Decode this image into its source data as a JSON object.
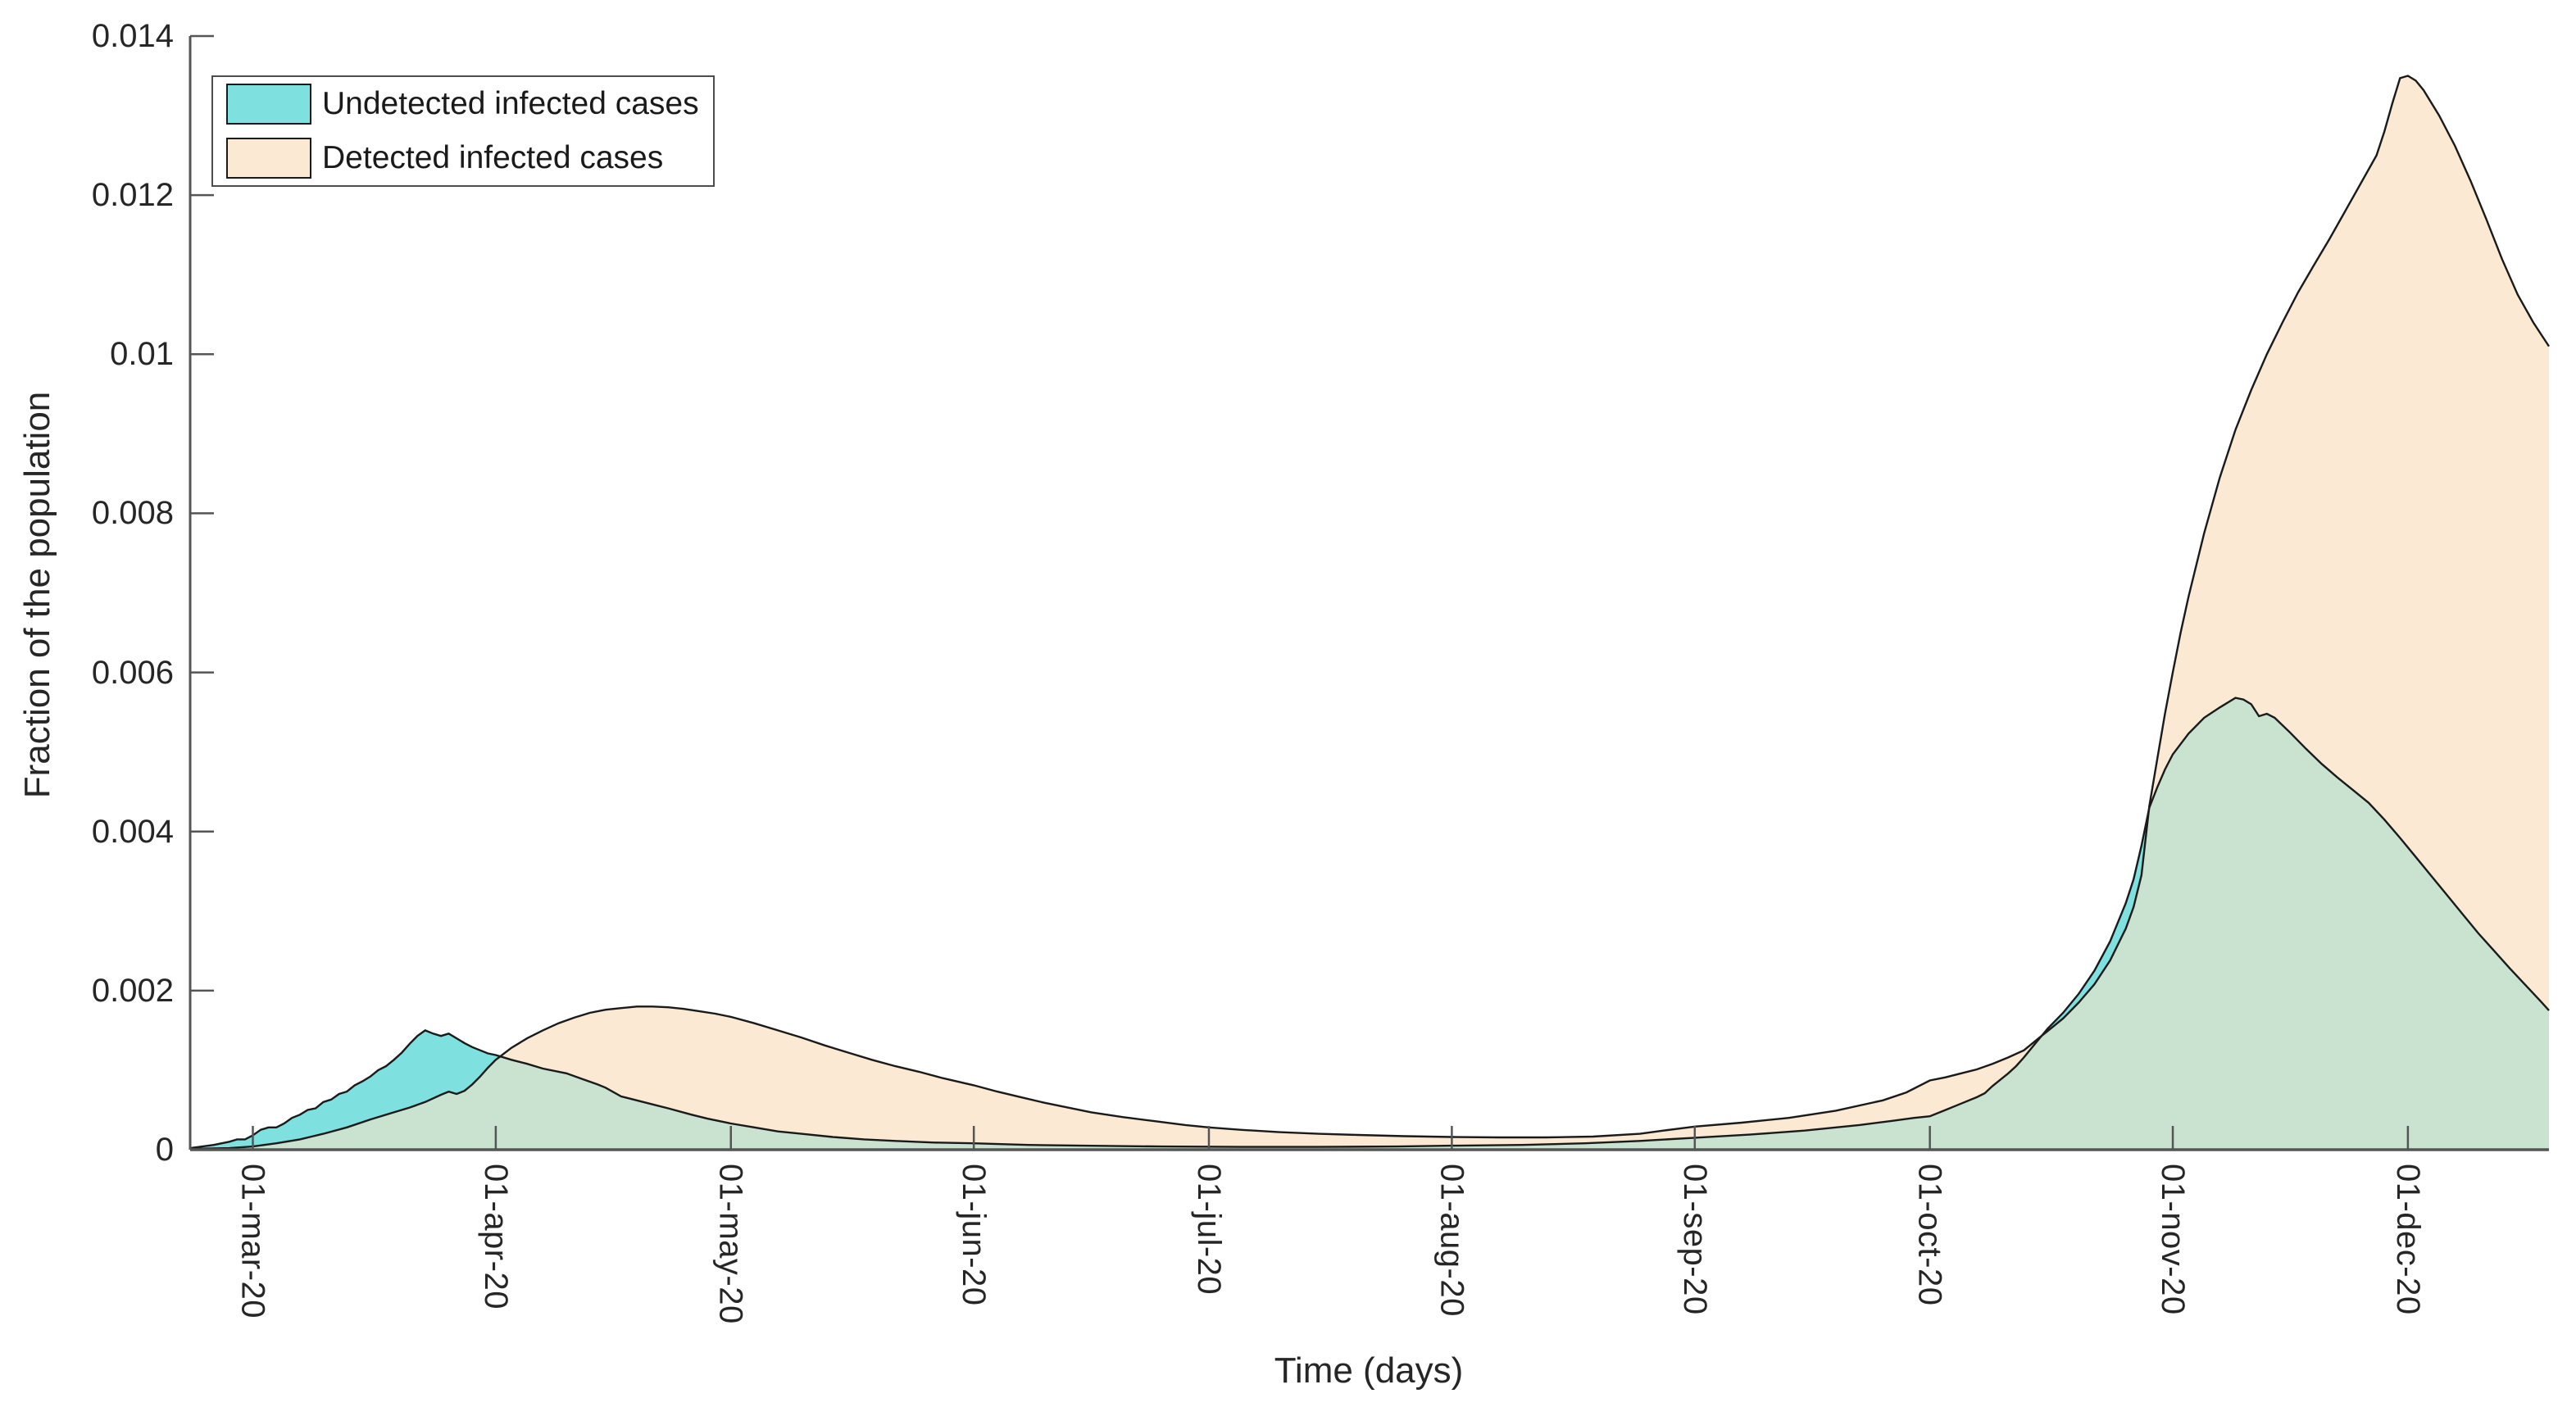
{
  "window": {
    "background": "#ffffff"
  },
  "chart_data": {
    "type": "area",
    "title": "",
    "xlabel": "Time (days)",
    "ylabel": "Fraction of the population",
    "grid": false,
    "box": false,
    "legend_position": "top-left-inside",
    "ylim": [
      0,
      0.014
    ],
    "xlim": [
      "2020-02-22",
      "2020-12-19"
    ],
    "y_ticks": [
      0,
      0.002,
      0.004,
      0.006,
      0.008,
      0.01,
      0.012,
      0.014
    ],
    "y_tick_labels": [
      "0",
      "0.002",
      "0.004",
      "0.006",
      "0.008",
      "0.01",
      "0.012",
      "0.014"
    ],
    "x_tick_dates": [
      "2020-03-01",
      "2020-04-01",
      "2020-05-01",
      "2020-06-01",
      "2020-07-01",
      "2020-08-01",
      "2020-09-01",
      "2020-10-01",
      "2020-11-01",
      "2020-12-01"
    ],
    "x_tick_labels": [
      "01-mar-20",
      "01-apr-20",
      "01-may-20",
      "01-jun-20",
      "01-jul-20",
      "01-aug-20",
      "01-sep-20",
      "01-oct-20",
      "01-nov-20",
      "01-dec-20"
    ],
    "overlap_fill": "#C9E3D0",
    "line_color": "#1A1A1A",
    "axis_color": "#555555",
    "text_color": "#262626",
    "series": [
      {
        "name": "Undetected infected cases",
        "fill": "#7EE1DF",
        "points": [
          [
            "2020-02-22",
            2e-05
          ],
          [
            "2020-02-25",
            6e-05
          ],
          [
            "2020-02-27",
            0.0001
          ],
          [
            "2020-02-28",
            0.00013
          ],
          [
            "2020-02-29",
            0.00013
          ],
          [
            "2020-03-01",
            0.00018
          ],
          [
            "2020-03-02",
            0.00025
          ],
          [
            "2020-03-03",
            0.00028
          ],
          [
            "2020-03-04",
            0.00028
          ],
          [
            "2020-03-05",
            0.00033
          ],
          [
            "2020-03-06",
            0.0004
          ],
          [
            "2020-03-07",
            0.00044
          ],
          [
            "2020-03-08",
            0.0005
          ],
          [
            "2020-03-09",
            0.00052
          ],
          [
            "2020-03-10",
            0.0006
          ],
          [
            "2020-03-11",
            0.00063
          ],
          [
            "2020-03-12",
            0.0007
          ],
          [
            "2020-03-13",
            0.00073
          ],
          [
            "2020-03-14",
            0.00081
          ],
          [
            "2020-03-15",
            0.00086
          ],
          [
            "2020-03-16",
            0.00092
          ],
          [
            "2020-03-17",
            0.001
          ],
          [
            "2020-03-18",
            0.00105
          ],
          [
            "2020-03-19",
            0.00113
          ],
          [
            "2020-03-20",
            0.00122
          ],
          [
            "2020-03-21",
            0.00133
          ],
          [
            "2020-03-22",
            0.00143
          ],
          [
            "2020-03-23",
            0.0015
          ],
          [
            "2020-03-24",
            0.00146
          ],
          [
            "2020-03-25",
            0.00143
          ],
          [
            "2020-03-26",
            0.00146
          ],
          [
            "2020-03-27",
            0.0014
          ],
          [
            "2020-03-28",
            0.00134
          ],
          [
            "2020-03-29",
            0.00129
          ],
          [
            "2020-03-30",
            0.00125
          ],
          [
            "2020-03-31",
            0.00121
          ],
          [
            "2020-04-01",
            0.00119
          ],
          [
            "2020-04-03",
            0.00113
          ],
          [
            "2020-04-05",
            0.00108
          ],
          [
            "2020-04-07",
            0.00102
          ],
          [
            "2020-04-10",
            0.00096
          ],
          [
            "2020-04-12",
            0.00089
          ],
          [
            "2020-04-14",
            0.00082
          ],
          [
            "2020-04-15",
            0.00078
          ],
          [
            "2020-04-17",
            0.00067
          ],
          [
            "2020-04-19",
            0.00062
          ],
          [
            "2020-04-21",
            0.00057
          ],
          [
            "2020-04-23",
            0.00052
          ],
          [
            "2020-04-26",
            0.00044
          ],
          [
            "2020-04-28",
            0.00039
          ],
          [
            "2020-05-01",
            0.00033
          ],
          [
            "2020-05-04",
            0.00028
          ],
          [
            "2020-05-07",
            0.00023
          ],
          [
            "2020-05-10",
            0.0002
          ],
          [
            "2020-05-14",
            0.00016
          ],
          [
            "2020-05-18",
            0.00013
          ],
          [
            "2020-05-22",
            0.00011
          ],
          [
            "2020-05-27",
            9e-05
          ],
          [
            "2020-06-01",
            8e-05
          ],
          [
            "2020-06-08",
            6e-05
          ],
          [
            "2020-06-15",
            5e-05
          ],
          [
            "2020-06-25",
            4e-05
          ],
          [
            "2020-07-05",
            3.5e-05
          ],
          [
            "2020-07-15",
            3.5e-05
          ],
          [
            "2020-07-25",
            4e-05
          ],
          [
            "2020-08-01",
            5e-05
          ],
          [
            "2020-08-10",
            6e-05
          ],
          [
            "2020-08-18",
            8e-05
          ],
          [
            "2020-08-25",
            0.00011
          ],
          [
            "2020-09-01",
            0.00015
          ],
          [
            "2020-09-08",
            0.00019
          ],
          [
            "2020-09-15",
            0.00024
          ],
          [
            "2020-09-22",
            0.00031
          ],
          [
            "2020-09-26",
            0.00036
          ],
          [
            "2020-09-29",
            0.0004
          ],
          [
            "2020-10-01",
            0.00042
          ],
          [
            "2020-10-03",
            0.0005
          ],
          [
            "2020-10-05",
            0.00058
          ],
          [
            "2020-10-07",
            0.00066
          ],
          [
            "2020-10-08",
            0.00071
          ],
          [
            "2020-10-09",
            0.0008
          ],
          [
            "2020-10-10",
            0.00088
          ],
          [
            "2020-10-11",
            0.00096
          ],
          [
            "2020-10-12",
            0.00105
          ],
          [
            "2020-10-13",
            0.00116
          ],
          [
            "2020-10-14",
            0.00128
          ],
          [
            "2020-10-15",
            0.0014
          ],
          [
            "2020-10-16",
            0.00152
          ],
          [
            "2020-10-18",
            0.00172
          ],
          [
            "2020-10-20",
            0.00196
          ],
          [
            "2020-10-22",
            0.00225
          ],
          [
            "2020-10-24",
            0.00262
          ],
          [
            "2020-10-26",
            0.0031
          ],
          [
            "2020-10-27",
            0.0034
          ],
          [
            "2020-10-28",
            0.00382
          ],
          [
            "2020-10-29",
            0.0043
          ],
          [
            "2020-10-30",
            0.00455
          ],
          [
            "2020-10-31",
            0.00478
          ],
          [
            "2020-11-01",
            0.00497
          ],
          [
            "2020-11-03",
            0.00523
          ],
          [
            "2020-11-05",
            0.00543
          ],
          [
            "2020-11-07",
            0.00556
          ],
          [
            "2020-11-09",
            0.00568
          ],
          [
            "2020-11-10",
            0.00566
          ],
          [
            "2020-11-11",
            0.0056
          ],
          [
            "2020-11-12",
            0.00545
          ],
          [
            "2020-11-13",
            0.00548
          ],
          [
            "2020-11-14",
            0.00543
          ],
          [
            "2020-11-16",
            0.00524
          ],
          [
            "2020-11-18",
            0.00504
          ],
          [
            "2020-11-20",
            0.00485
          ],
          [
            "2020-11-22",
            0.00468
          ],
          [
            "2020-11-24",
            0.00452
          ],
          [
            "2020-11-26",
            0.00436
          ],
          [
            "2020-11-28",
            0.00415
          ],
          [
            "2020-11-30",
            0.00392
          ],
          [
            "2020-12-02",
            0.00368
          ],
          [
            "2020-12-04",
            0.00344
          ],
          [
            "2020-12-06",
            0.0032
          ],
          [
            "2020-12-08",
            0.00296
          ],
          [
            "2020-12-10",
            0.00272
          ],
          [
            "2020-12-12",
            0.0025
          ],
          [
            "2020-12-14",
            0.00228
          ],
          [
            "2020-12-16",
            0.00207
          ],
          [
            "2020-12-18",
            0.00186
          ],
          [
            "2020-12-19",
            0.00175
          ]
        ]
      },
      {
        "name": "Detected infected cases",
        "fill": "#FBE9D4",
        "points": [
          [
            "2020-02-22",
            1e-05
          ],
          [
            "2020-02-27",
            2e-05
          ],
          [
            "2020-03-01",
            4e-05
          ],
          [
            "2020-03-04",
            8e-05
          ],
          [
            "2020-03-07",
            0.00013
          ],
          [
            "2020-03-10",
            0.0002
          ],
          [
            "2020-03-13",
            0.00028
          ],
          [
            "2020-03-16",
            0.00038
          ],
          [
            "2020-03-19",
            0.00047
          ],
          [
            "2020-03-21",
            0.00053
          ],
          [
            "2020-03-23",
            0.0006
          ],
          [
            "2020-03-25",
            0.00069
          ],
          [
            "2020-03-26",
            0.00073
          ],
          [
            "2020-03-27",
            0.0007
          ],
          [
            "2020-03-28",
            0.00074
          ],
          [
            "2020-03-29",
            0.00082
          ],
          [
            "2020-03-30",
            0.00092
          ],
          [
            "2020-03-31",
            0.00103
          ],
          [
            "2020-04-01",
            0.00113
          ],
          [
            "2020-04-03",
            0.00128
          ],
          [
            "2020-04-05",
            0.0014
          ],
          [
            "2020-04-07",
            0.0015
          ],
          [
            "2020-04-09",
            0.00159
          ],
          [
            "2020-04-11",
            0.00166
          ],
          [
            "2020-04-13",
            0.00172
          ],
          [
            "2020-04-15",
            0.00176
          ],
          [
            "2020-04-17",
            0.00178
          ],
          [
            "2020-04-19",
            0.0018
          ],
          [
            "2020-04-21",
            0.0018
          ],
          [
            "2020-04-23",
            0.00179
          ],
          [
            "2020-04-25",
            0.00177
          ],
          [
            "2020-04-27",
            0.00174
          ],
          [
            "2020-04-29",
            0.00171
          ],
          [
            "2020-05-01",
            0.00167
          ],
          [
            "2020-05-04",
            0.00159
          ],
          [
            "2020-05-07",
            0.0015
          ],
          [
            "2020-05-10",
            0.00141
          ],
          [
            "2020-05-13",
            0.00131
          ],
          [
            "2020-05-16",
            0.00122
          ],
          [
            "2020-05-19",
            0.00113
          ],
          [
            "2020-05-22",
            0.00105
          ],
          [
            "2020-05-25",
            0.00098
          ],
          [
            "2020-05-28",
            0.0009
          ],
          [
            "2020-06-01",
            0.00081
          ],
          [
            "2020-06-04",
            0.00073
          ],
          [
            "2020-06-07",
            0.00066
          ],
          [
            "2020-06-10",
            0.00059
          ],
          [
            "2020-06-13",
            0.00053
          ],
          [
            "2020-06-16",
            0.00047
          ],
          [
            "2020-06-20",
            0.00041
          ],
          [
            "2020-06-24",
            0.00036
          ],
          [
            "2020-06-28",
            0.00031
          ],
          [
            "2020-07-01",
            0.00028
          ],
          [
            "2020-07-05",
            0.00025
          ],
          [
            "2020-07-10",
            0.00022
          ],
          [
            "2020-07-15",
            0.0002
          ],
          [
            "2020-07-20",
            0.000185
          ],
          [
            "2020-07-26",
            0.00017
          ],
          [
            "2020-08-01",
            0.00016
          ],
          [
            "2020-08-07",
            0.000155
          ],
          [
            "2020-08-13",
            0.000155
          ],
          [
            "2020-08-19",
            0.000165
          ],
          [
            "2020-08-25",
            0.0002
          ],
          [
            "2020-08-28",
            0.00024
          ],
          [
            "2020-09-01",
            0.00029
          ],
          [
            "2020-09-07",
            0.00034
          ],
          [
            "2020-09-13",
            0.0004
          ],
          [
            "2020-09-19",
            0.00049
          ],
          [
            "2020-09-25",
            0.00062
          ],
          [
            "2020-09-28",
            0.00072
          ],
          [
            "2020-10-01",
            0.00087
          ],
          [
            "2020-10-03",
            0.00091
          ],
          [
            "2020-10-05",
            0.00096
          ],
          [
            "2020-10-07",
            0.00101
          ],
          [
            "2020-10-09",
            0.00108
          ],
          [
            "2020-10-11",
            0.00116
          ],
          [
            "2020-10-13",
            0.00125
          ],
          [
            "2020-10-15",
            0.00141
          ],
          [
            "2020-10-16",
            0.00149
          ],
          [
            "2020-10-18",
            0.00165
          ],
          [
            "2020-10-20",
            0.00185
          ],
          [
            "2020-10-22",
            0.00208
          ],
          [
            "2020-10-24",
            0.00238
          ],
          [
            "2020-10-26",
            0.00278
          ],
          [
            "2020-10-27",
            0.00305
          ],
          [
            "2020-10-28",
            0.00345
          ],
          [
            "2020-10-29",
            0.00432
          ],
          [
            "2020-10-30",
            0.0049
          ],
          [
            "2020-10-31",
            0.00548
          ],
          [
            "2020-11-01",
            0.006
          ],
          [
            "2020-11-02",
            0.0065
          ],
          [
            "2020-11-03",
            0.00695
          ],
          [
            "2020-11-05",
            0.00775
          ],
          [
            "2020-11-07",
            0.00845
          ],
          [
            "2020-11-09",
            0.00905
          ],
          [
            "2020-11-11",
            0.00955
          ],
          [
            "2020-11-13",
            0.01
          ],
          [
            "2020-11-15",
            0.0104
          ],
          [
            "2020-11-17",
            0.01078
          ],
          [
            "2020-11-19",
            0.01112
          ],
          [
            "2020-11-21",
            0.01145
          ],
          [
            "2020-11-23",
            0.0118
          ],
          [
            "2020-11-25",
            0.01215
          ],
          [
            "2020-11-27",
            0.0125
          ],
          [
            "2020-11-28",
            0.0128
          ],
          [
            "2020-11-29",
            0.01315
          ],
          [
            "2020-11-30",
            0.01347
          ],
          [
            "2020-12-01",
            0.0135
          ],
          [
            "2020-12-02",
            0.01344
          ],
          [
            "2020-12-03",
            0.01332
          ],
          [
            "2020-12-05",
            0.013
          ],
          [
            "2020-12-07",
            0.01262
          ],
          [
            "2020-12-09",
            0.01218
          ],
          [
            "2020-12-11",
            0.0117
          ],
          [
            "2020-12-13",
            0.0112
          ],
          [
            "2020-12-15",
            0.01075
          ],
          [
            "2020-12-17",
            0.0104
          ],
          [
            "2020-12-19",
            0.0101
          ]
        ]
      }
    ]
  },
  "legend": {
    "items": [
      {
        "label": "Undetected infected cases",
        "swatch": "#7EE1DF"
      },
      {
        "label": "Detected infected cases",
        "swatch": "#FBE9D4"
      }
    ]
  }
}
